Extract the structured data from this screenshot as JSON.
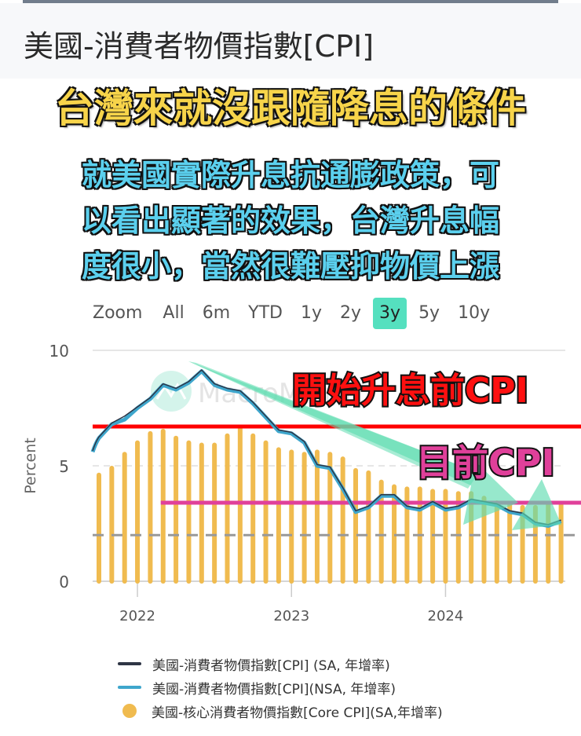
{
  "page": {
    "title": "美國-消費者物價指數[CPI]"
  },
  "overlay": {
    "headline": "台灣來就沒跟隨降息的條件",
    "subtext_lines": [
      "就美國實際升息抗通膨政策，可",
      "以看出顯著的效果，台灣升息幅",
      "度很小，當然很難壓抑物價上漲"
    ],
    "annotation_before": "開始升息前CPI",
    "annotation_current": "目前CPI"
  },
  "range_selector": {
    "label": "Zoom",
    "options": [
      "All",
      "6m",
      "YTD",
      "1y",
      "2y",
      "3y",
      "5y",
      "10y"
    ],
    "selected": "3y"
  },
  "watermark": "MacroMicro",
  "colors": {
    "cpi_sa": "#2e3545",
    "cpi_nsa": "#3ea6cc",
    "core_cpi": "#f0bb4f",
    "red_line": "#ff0000",
    "pink_line": "#e0409a",
    "target_dash": "#999999",
    "arrow": "#5fdcb0",
    "range_active": "#55e0bf"
  },
  "legend": [
    {
      "label": "美國-消費者物價指數[CPI] (SA, 年增率)",
      "type": "line",
      "color_key": "cpi_sa"
    },
    {
      "label": "美國-消費者物價指數[CPI](NSA, 年增率)",
      "type": "line",
      "color_key": "cpi_nsa"
    },
    {
      "label": "美國-核心消費者物價指數[Core CPI](SA,年增率)",
      "type": "dot",
      "color_key": "core_cpi"
    }
  ],
  "chart_data": {
    "type": "bar+line",
    "title": "美國-消費者物價指數[CPI]",
    "xlabel": "",
    "ylabel": "Percent",
    "ylim": [
      0,
      10
    ],
    "yticks": [
      0,
      5,
      10
    ],
    "xticks": [
      {
        "label": "2022",
        "index": 3
      },
      {
        "label": "2023",
        "index": 15
      },
      {
        "label": "2024",
        "index": 27
      }
    ],
    "grid": true,
    "x": [
      "2021-10",
      "2021-11",
      "2021-12",
      "2022-01",
      "2022-02",
      "2022-03",
      "2022-04",
      "2022-05",
      "2022-06",
      "2022-07",
      "2022-08",
      "2022-09",
      "2022-10",
      "2022-11",
      "2022-12",
      "2023-01",
      "2023-02",
      "2023-03",
      "2023-04",
      "2023-05",
      "2023-06",
      "2023-07",
      "2023-08",
      "2023-09",
      "2023-10",
      "2023-11",
      "2023-12",
      "2024-01",
      "2024-02",
      "2024-03",
      "2024-04",
      "2024-05",
      "2024-06",
      "2024-07",
      "2024-08",
      "2024-09",
      "2024-10"
    ],
    "series": [
      {
        "name": "美國-消費者物價指數[CPI] (SA, 年增率)",
        "type": "line",
        "values": [
          6.2,
          6.8,
          7.1,
          7.5,
          7.9,
          8.5,
          8.3,
          8.6,
          9.1,
          8.5,
          8.3,
          8.2,
          7.7,
          7.1,
          6.5,
          6.4,
          6.0,
          5.0,
          4.9,
          4.0,
          3.0,
          3.2,
          3.7,
          3.7,
          3.2,
          3.1,
          3.4,
          3.1,
          3.2,
          3.5,
          3.4,
          3.3,
          3.0,
          2.9,
          2.5,
          2.4,
          2.6
        ]
      },
      {
        "name": "美國-消費者物價指數[CPI](NSA, 年增率)",
        "type": "line",
        "values": [
          6.2,
          6.8,
          7.0,
          7.5,
          7.9,
          8.5,
          8.3,
          8.6,
          9.1,
          8.5,
          8.3,
          8.2,
          7.7,
          7.1,
          6.5,
          6.4,
          6.0,
          5.0,
          4.9,
          4.0,
          3.0,
          3.2,
          3.7,
          3.7,
          3.2,
          3.1,
          3.4,
          3.1,
          3.2,
          3.5,
          3.4,
          3.3,
          3.0,
          2.9,
          2.5,
          2.4,
          2.6
        ]
      },
      {
        "name": "美國-核心消費者物價指數[Core CPI](SA,年增率)",
        "type": "bar",
        "values": [
          4.6,
          4.9,
          5.5,
          6.0,
          6.4,
          6.5,
          6.2,
          6.0,
          5.9,
          5.9,
          6.3,
          6.6,
          6.3,
          6.0,
          5.7,
          5.6,
          5.5,
          5.6,
          5.5,
          5.3,
          4.8,
          4.7,
          4.3,
          4.1,
          4.0,
          4.0,
          3.9,
          3.9,
          3.8,
          3.8,
          3.6,
          3.4,
          3.3,
          3.2,
          3.2,
          3.3,
          3.3
        ]
      }
    ],
    "annotations": [
      {
        "type": "hline",
        "value": 6.7,
        "color": "#ff0000",
        "label": "開始升息前CPI"
      },
      {
        "type": "hline",
        "value": 3.4,
        "color": "#e0409a",
        "label": "目前CPI",
        "start_index": 5
      },
      {
        "type": "hline",
        "value": 2.0,
        "color": "#999999",
        "style": "dashed"
      },
      {
        "type": "arrow",
        "from": [
          8,
          9.6
        ],
        "to": [
          35,
          2.3
        ],
        "color": "#5fdcb0"
      }
    ]
  }
}
